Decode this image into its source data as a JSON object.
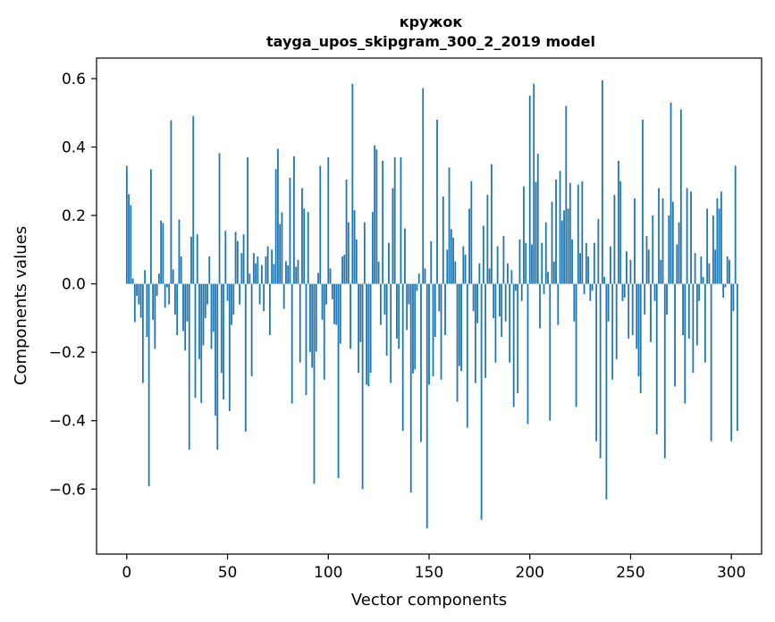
{
  "chart_data": {
    "type": "bar",
    "title": "кружок",
    "subtitle": "tayga_upos_skipgram_300_2_2019 model",
    "xlabel": "Vector components",
    "ylabel": "Components values",
    "xlim": [
      -15,
      315
    ],
    "ylim": [
      -0.79,
      0.66
    ],
    "x_ticks": [
      0,
      50,
      100,
      150,
      200,
      250,
      300
    ],
    "x_tick_labels": [
      "0",
      "50",
      "100",
      "150",
      "200",
      "250",
      "300"
    ],
    "y_ticks": [
      -0.6,
      -0.4,
      -0.2,
      0.0,
      0.2,
      0.4,
      0.6
    ],
    "y_tick_labels": [
      "−0.6",
      "−0.4",
      "−0.2",
      "0.0",
      "0.2",
      "0.4",
      "0.6"
    ],
    "grid": false,
    "bar_color": "#1f77b4",
    "values": [
      0.345,
      0.262,
      0.23,
      0.016,
      -0.112,
      -0.035,
      -0.06,
      -0.099,
      -0.29,
      0.04,
      -0.155,
      -0.592,
      0.335,
      -0.105,
      -0.19,
      -0.035,
      0.03,
      0.185,
      0.178,
      -0.07,
      -0.01,
      -0.06,
      0.478,
      0.042,
      -0.09,
      -0.15,
      0.188,
      0.08,
      -0.138,
      -0.195,
      -0.11,
      -0.485,
      0.138,
      0.49,
      -0.333,
      0.145,
      -0.22,
      -0.348,
      -0.18,
      -0.1,
      -0.06,
      0.08,
      -0.19,
      -0.14,
      -0.385,
      -0.485,
      0.382,
      -0.26,
      -0.338,
      0.155,
      -0.05,
      -0.372,
      -0.12,
      -0.09,
      0.152,
      0.125,
      -0.06,
      0.09,
      0.145,
      -0.432,
      0.37,
      0.03,
      -0.27,
      0.09,
      0.06,
      0.08,
      -0.06,
      0.055,
      -0.08,
      0.08,
      0.11,
      -0.15,
      0.1,
      0.058,
      0.335,
      0.395,
      0.175,
      0.209,
      -0.073,
      0.066,
      0.054,
      0.31,
      -0.35,
      0.373,
      0.05,
      0.07,
      -0.23,
      0.28,
      0.22,
      -0.325,
      0.21,
      -0.2,
      -0.245,
      -0.585,
      -0.198,
      0.032,
      0.345,
      -0.105,
      -0.28,
      -0.06,
      0.37,
      0.045,
      -0.045,
      -0.118,
      -0.12,
      -0.568,
      -0.175,
      0.08,
      0.085,
      0.305,
      0.18,
      -0.19,
      0.585,
      0.215,
      0.13,
      -0.26,
      -0.17,
      -0.6,
      0.18,
      -0.295,
      -0.3,
      -0.26,
      0.21,
      0.405,
      0.393,
      0.065,
      -0.12,
      0.36,
      -0.09,
      -0.21,
      0.12,
      -0.29,
      0.28,
      0.37,
      -0.16,
      -0.19,
      0.37,
      -0.43,
      0.162,
      -0.135,
      -0.06,
      -0.61,
      -0.262,
      -0.25,
      -0.02,
      0.03,
      -0.462,
      0.572,
      0.045,
      -0.715,
      -0.295,
      0.125,
      -0.27,
      -0.155,
      0.48,
      -0.08,
      -0.28,
      0.255,
      -0.15,
      0.1,
      0.34,
      0.16,
      0.135,
      0.065,
      -0.345,
      -0.24,
      -0.255,
      0.11,
      0.085,
      -0.42,
      0.22,
      0.3,
      -0.08,
      -0.29,
      -0.115,
      0.06,
      -0.69,
      0.17,
      -0.275,
      0.26,
      0.045,
      0.35,
      -0.1,
      -0.23,
      0.11,
      -0.095,
      -0.155,
      0.14,
      -0.11,
      0.06,
      -0.23,
      0.04,
      -0.36,
      -0.02,
      -0.32,
      0.13,
      -0.05,
      0.285,
      0.12,
      -0.41,
      0.55,
      0.115,
      0.585,
      0.298,
      0.38,
      -0.13,
      0.12,
      -0.03,
      0.18,
      0.035,
      -0.4,
      0.24,
      0.065,
      0.305,
      -0.12,
      0.33,
      0.185,
      0.215,
      0.52,
      0.22,
      0.295,
      0.13,
      -0.11,
      -0.36,
      0.29,
      0.09,
      0.3,
      -0.03,
      0.12,
      0.08,
      -0.05,
      -0.02,
      0.12,
      -0.46,
      0.19,
      -0.51,
      0.595,
      0.02,
      -0.63,
      -0.11,
      0.11,
      -0.28,
      0.26,
      -0.22,
      0.36,
      0.3,
      -0.05,
      -0.04,
      0.095,
      -0.16,
      0.07,
      -0.15,
      0.25,
      -0.19,
      -0.27,
      -0.32,
      0.48,
      -0.09,
      0.14,
      0.1,
      -0.17,
      0.2,
      -0.05,
      -0.44,
      0.28,
      0.07,
      0.25,
      -0.51,
      -0.09,
      0.2,
      0.53,
      0.24,
      -0.3,
      0.115,
      0.18,
      0.51,
      -0.15,
      -0.35,
      0.28,
      -0.16,
      0.27,
      -0.26,
      0.09,
      -0.18,
      -0.05,
      0.08,
      0.02,
      -0.23,
      0.22,
      0.06,
      -0.46,
      0.2,
      0.1,
      0.25,
      0.22,
      0.27,
      -0.04,
      -0.01,
      0.08,
      0.07,
      -0.46,
      -0.08,
      0.345,
      -0.43
    ]
  }
}
